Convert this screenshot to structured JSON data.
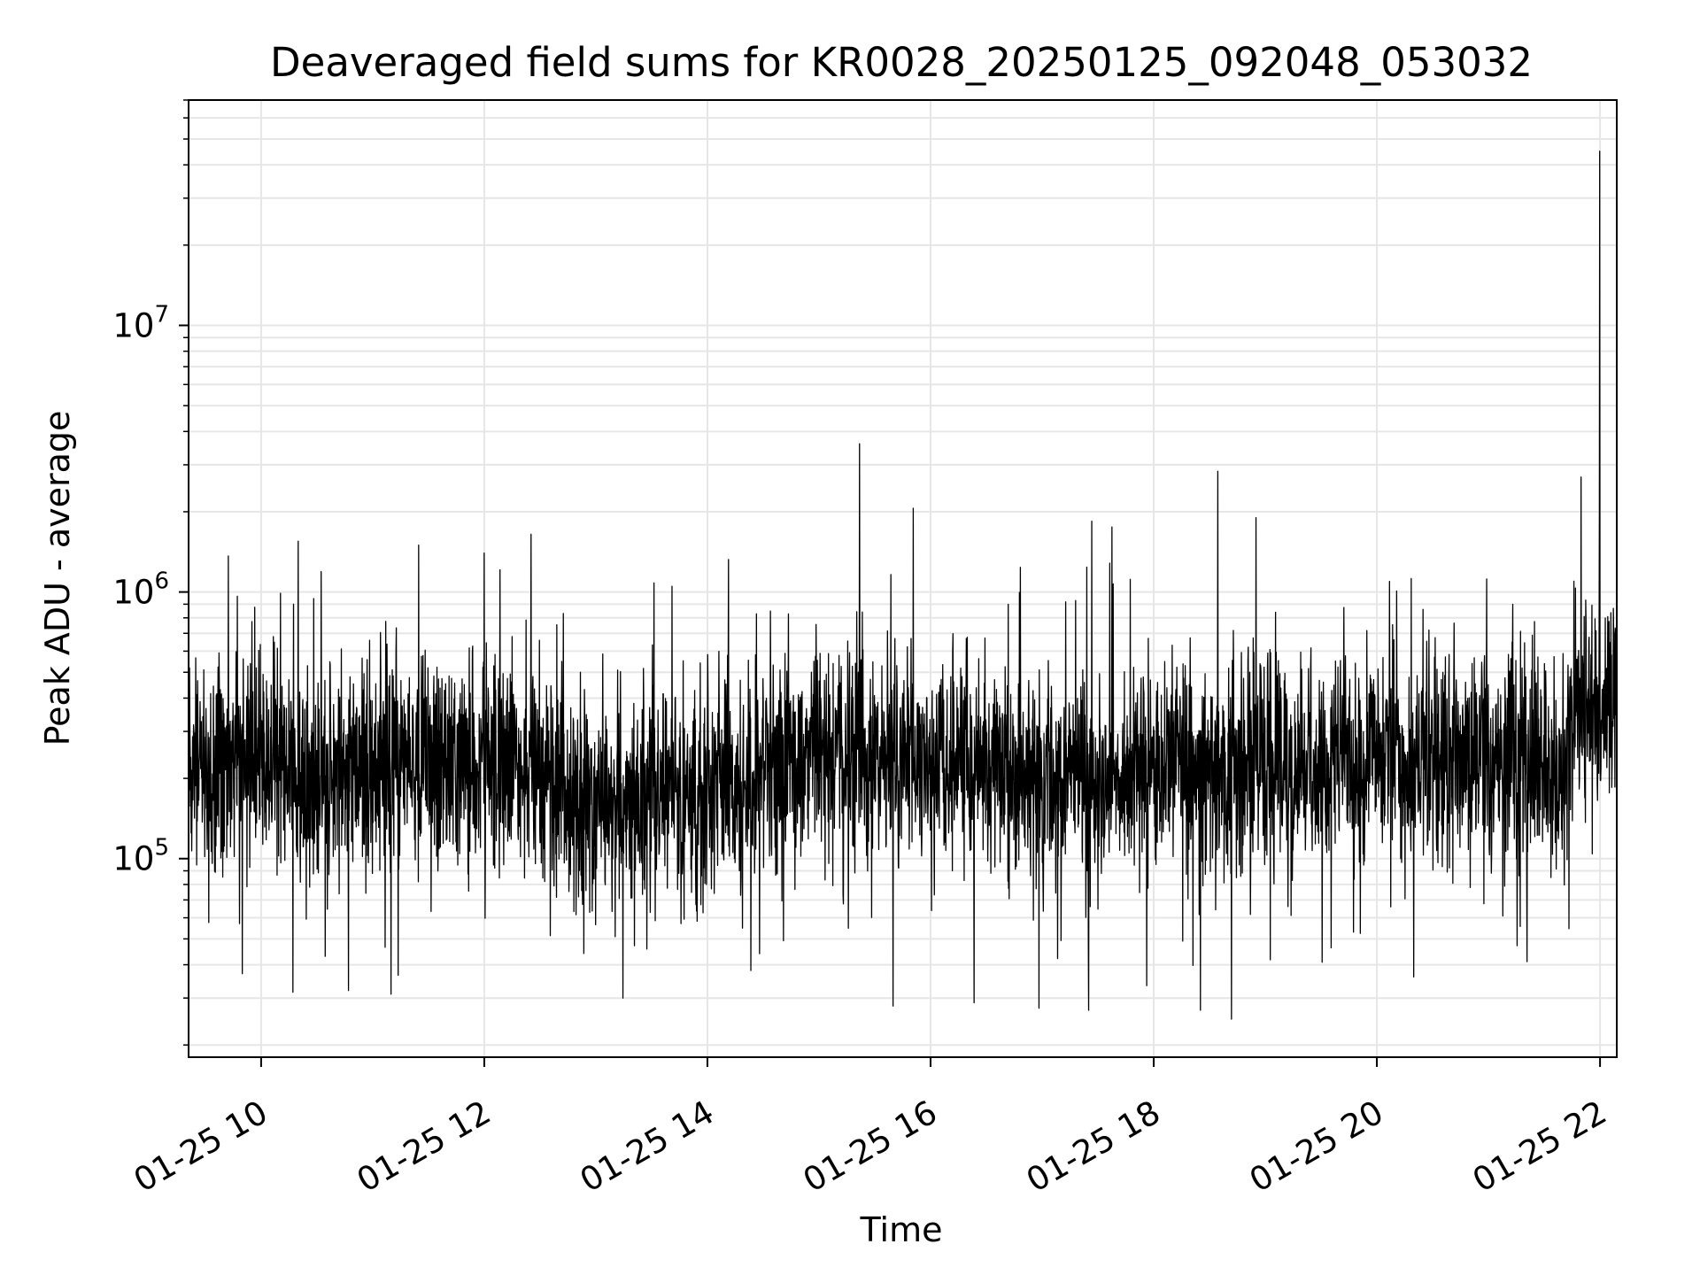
{
  "chart_data": {
    "type": "line",
    "title": "Deaveraged field sums for KR0028_20250125_092048_053032",
    "xlabel": "Time",
    "ylabel": "Peak ADU - average",
    "x_axis": {
      "kind": "time",
      "range": [
        "2025-01-25 09:21",
        "2025-01-25 22:09"
      ],
      "ticks": [
        {
          "value": "2025-01-25 10:00",
          "label": "01-25 10"
        },
        {
          "value": "2025-01-25 12:00",
          "label": "01-25 12"
        },
        {
          "value": "2025-01-25 14:00",
          "label": "01-25 14"
        },
        {
          "value": "2025-01-25 16:00",
          "label": "01-25 16"
        },
        {
          "value": "2025-01-25 18:00",
          "label": "01-25 18"
        },
        {
          "value": "2025-01-25 20:00",
          "label": "01-25 20"
        },
        {
          "value": "2025-01-25 22:00",
          "label": "01-25 22"
        }
      ]
    },
    "y_axis": {
      "scale": "log",
      "range": [
        18000,
        70000000
      ],
      "ticks": [
        {
          "value": 100000,
          "base": "10",
          "exp": "5"
        },
        {
          "value": 1000000,
          "base": "10",
          "exp": "6"
        },
        {
          "value": 10000000,
          "base": "10",
          "exp": "7"
        }
      ]
    },
    "grid": true,
    "legend": "none",
    "line_color": "#000000",
    "grid_color": "#e6e6e6",
    "series": [
      {
        "baseline": [
          [
            "2025-01-25 09:21",
            230000
          ],
          [
            "2025-01-25 10:30",
            210000
          ],
          [
            "2025-01-25 11:30",
            230000
          ],
          [
            "2025-01-25 12:30",
            230000
          ],
          [
            "2025-01-25 12:50",
            160000
          ],
          [
            "2025-01-25 14:00",
            180000
          ],
          [
            "2025-01-25 15:00",
            250000
          ],
          [
            "2025-01-25 16:00",
            230000
          ],
          [
            "2025-01-25 17:00",
            200000
          ],
          [
            "2025-01-25 18:00",
            220000
          ],
          [
            "2025-01-25 19:00",
            230000
          ],
          [
            "2025-01-25 20:00",
            240000
          ],
          [
            "2025-01-25 21:00",
            230000
          ],
          [
            "2025-01-25 21:40",
            230000
          ],
          [
            "2025-01-25 21:47",
            380000
          ],
          [
            "2025-01-25 22:09",
            420000
          ]
        ],
        "peaks": [
          [
            "2025-01-25 09:50",
            1100000
          ],
          [
            "2025-01-25 10:20",
            1550000
          ],
          [
            "2025-01-25 11:25",
            1500000
          ],
          [
            "2025-01-25 12:00",
            1400000
          ],
          [
            "2025-01-25 15:22",
            3600000
          ],
          [
            "2025-01-25 18:55",
            1900000
          ],
          [
            "2025-01-25 21:50",
            2700000
          ],
          [
            "2025-01-25 22:00",
            45000000
          ]
        ],
        "troughs": [
          [
            "2025-01-25 09:50",
            37000
          ],
          [
            "2025-01-25 10:47",
            32000
          ],
          [
            "2025-01-25 11:10",
            31000
          ],
          [
            "2025-01-25 13:15",
            30000
          ],
          [
            "2025-01-25 15:40",
            28000
          ],
          [
            "2025-01-25 17:25",
            27000
          ],
          [
            "2025-01-25 18:25",
            27000
          ],
          [
            "2025-01-25 18:42",
            25000
          ],
          [
            "2025-01-25 20:20",
            36000
          ]
        ]
      }
    ]
  }
}
